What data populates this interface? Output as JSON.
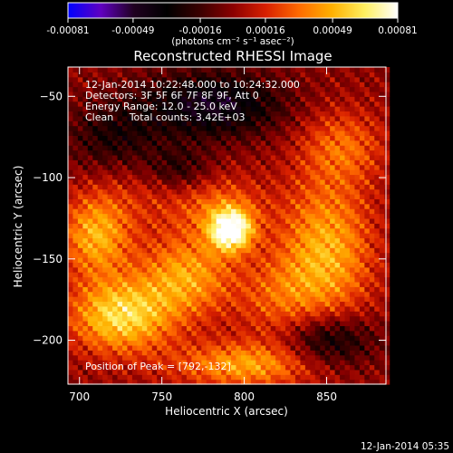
{
  "colorbar": {
    "ticks": [
      "-0.00081",
      "-0.00049",
      "-0.00016",
      "0.00016",
      "0.00049",
      "0.00081"
    ],
    "tick_values": [
      -0.00081,
      -0.00049,
      -0.00016,
      0.00016,
      0.00049,
      0.00081
    ],
    "range": [
      -0.00081,
      0.00081
    ],
    "units": "(photons cm⁻² s⁻¹ asec⁻²)",
    "colormap": [
      "#0000ff",
      "#6000c0",
      "#200020",
      "#000000",
      "#3a0000",
      "#8b0000",
      "#d82000",
      "#ff6a00",
      "#ffb000",
      "#ffef60",
      "#ffffff"
    ]
  },
  "title": "Reconstructed RHESSI Image",
  "annotations": {
    "time_range": "12-Jan-2014 10:22:48.000 to 10:24:32.000",
    "detectors": "Detectors: 3F 5F 6F 7F 8F 9F, Att 0",
    "energy": "Energy Range: 12.0 - 25.0 keV",
    "clean": "Clean     Total counts: 3.42E+03",
    "peak": "Position of Peak = [792,-132]"
  },
  "footer_timestamp": "12-Jan-2014 05:35",
  "chart_data": {
    "type": "heatmap",
    "title": "Reconstructed RHESSI Image",
    "xlabel": "Heliocentric X (arcsec)",
    "ylabel": "Heliocentric Y (arcsec)",
    "xlim": [
      693,
      886
    ],
    "ylim": [
      -227,
      -32
    ],
    "x_ticks": [
      700,
      750,
      800,
      850
    ],
    "y_ticks": [
      -50,
      -100,
      -150,
      -200
    ],
    "peak": [
      792,
      -132
    ],
    "zlim": [
      -0.00081,
      0.00081
    ],
    "grid": false,
    "components": [
      {
        "x": 792,
        "y": -132,
        "amp": 1.0,
        "sx": 9,
        "sy": 9
      },
      {
        "x": 785,
        "y": -118,
        "amp": 0.35,
        "sx": 20,
        "sy": 14
      },
      {
        "x": 710,
        "y": -135,
        "amp": 0.6,
        "sx": 15,
        "sy": 18
      },
      {
        "x": 725,
        "y": -185,
        "amp": 0.75,
        "sx": 22,
        "sy": 16
      },
      {
        "x": 765,
        "y": -160,
        "amp": 0.55,
        "sx": 20,
        "sy": 18
      },
      {
        "x": 800,
        "y": -215,
        "amp": 0.55,
        "sx": 30,
        "sy": 10
      },
      {
        "x": 850,
        "y": -145,
        "amp": 0.6,
        "sx": 20,
        "sy": 32
      },
      {
        "x": 860,
        "y": -80,
        "amp": 0.35,
        "sx": 18,
        "sy": 16
      },
      {
        "x": 820,
        "y": -175,
        "amp": 0.3,
        "sx": 18,
        "sy": 20
      },
      {
        "x": 740,
        "y": -110,
        "amp": 0.15,
        "sx": 20,
        "sy": 15
      },
      {
        "x": 850,
        "y": -200,
        "amp": -0.5,
        "sx": 20,
        "sy": 12
      },
      {
        "x": 780,
        "y": -55,
        "amp": -0.55,
        "sx": 30,
        "sy": 14
      },
      {
        "x": 720,
        "y": -75,
        "amp": -0.3,
        "sx": 20,
        "sy": 15
      },
      {
        "x": 760,
        "y": -95,
        "amp": -0.3,
        "sx": 14,
        "sy": 10
      }
    ]
  }
}
